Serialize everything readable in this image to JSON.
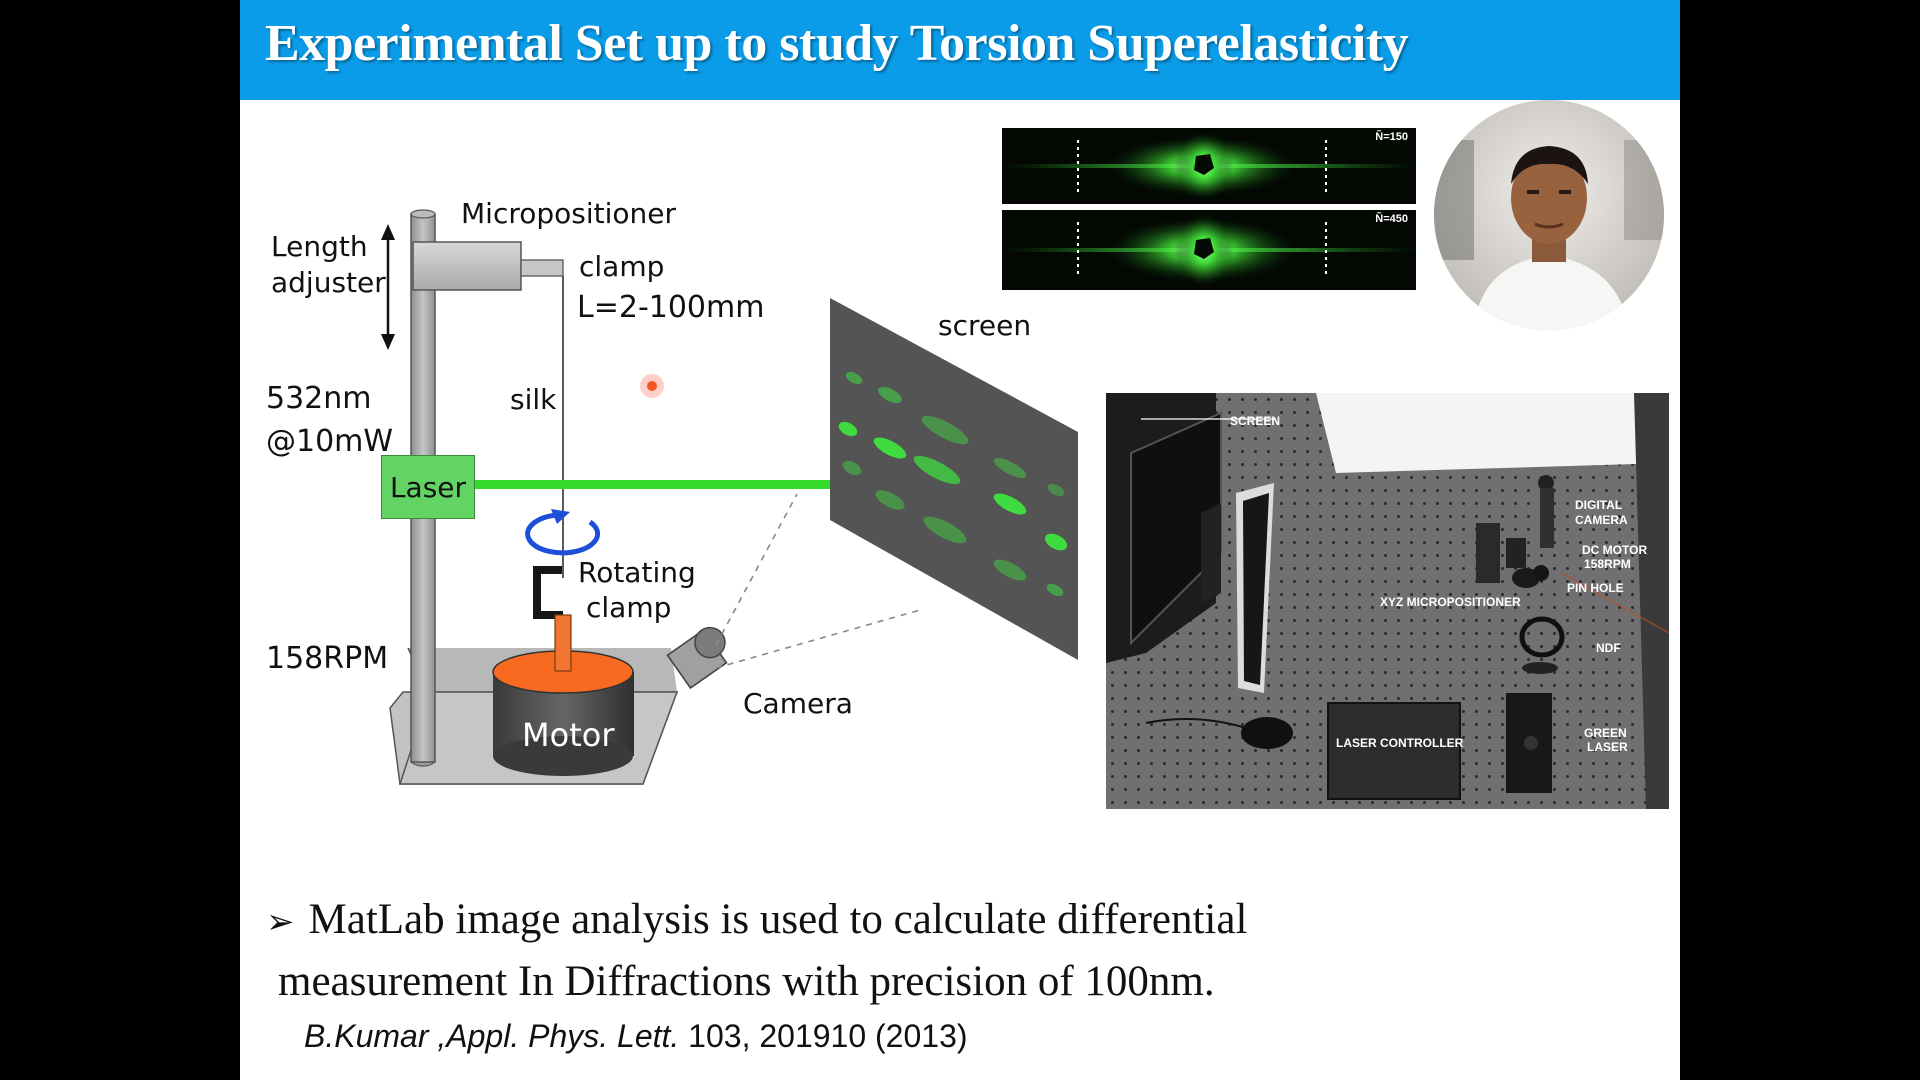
{
  "title": "Experimental Set up to study Torsion Superelasticity",
  "diagram": {
    "micropositioner": "Micropositioner",
    "length_adjuster_1": "Length",
    "length_adjuster_2": "adjuster",
    "clamp": "clamp",
    "length_range": "L=2-100mm",
    "wavelength": "532nm",
    "power": "@10mW",
    "silk": "silk",
    "laser": "Laser",
    "screen": "screen",
    "rotating_clamp_1": "Rotating",
    "rotating_clamp_2": "clamp",
    "rpm": "158RPM",
    "motor": "Motor",
    "camera": "Camera"
  },
  "diffraction": {
    "n1": "Ñ=150",
    "n2": "Ñ=450"
  },
  "lab_photo_labels": {
    "screen": "SCREEN",
    "digital_camera_1": "DIGITAL",
    "digital_camera_2": "CAMERA",
    "dc_motor_1": "DC MOTOR",
    "dc_motor_2": "158RPM",
    "pin_hole": "PIN HOLE",
    "xyz": "XYZ MICROPOSITIONER",
    "ndf": "NDF",
    "laser_controller": "LASER CONTROLLER",
    "green_laser_1": "GREEN",
    "green_laser_2": "LASER"
  },
  "bullet": {
    "marker": "➢",
    "line1": "MatLab image analysis is used to calculate differential",
    "line2": "measurement In Diffractions with precision of 100nm."
  },
  "citation": {
    "authors": "B.Kumar ,",
    "journal": "Appl. Phys. Lett.",
    "ref": " 103, 201910 (2013)"
  },
  "colors": {
    "title_bar": "#0a9ce8",
    "laser_green": "#2bd62b",
    "motor_top": "#f86a1f",
    "rotation_arrow": "#1e4fd8"
  }
}
